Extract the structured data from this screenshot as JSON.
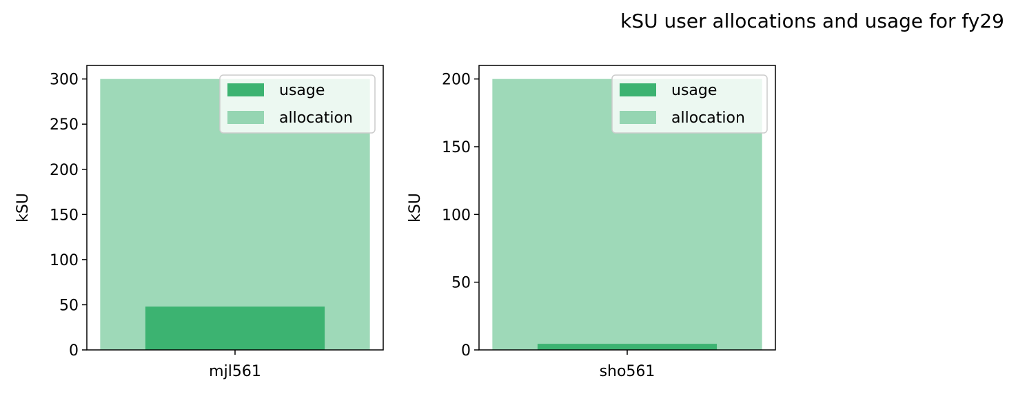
{
  "figure_title": "kSU user allocations and usage for fy29",
  "colors": {
    "usage": "#3cb371",
    "allocation": "#9ed9b8",
    "legend_usage": "#3cb371",
    "legend_allocation": "#95d5b2"
  },
  "chart_data": [
    {
      "type": "bar",
      "categories": [
        "mjl561"
      ],
      "ylabel": "kSU",
      "ylim": [
        0,
        315
      ],
      "yticks": [
        0,
        50,
        100,
        150,
        200,
        250,
        300
      ],
      "series": [
        {
          "name": "usage",
          "values": [
            48
          ]
        },
        {
          "name": "allocation",
          "values": [
            300
          ]
        }
      ],
      "legend_position": "top-right",
      "grid": false
    },
    {
      "type": "bar",
      "categories": [
        "sho561"
      ],
      "ylabel": "kSU",
      "ylim": [
        0,
        210
      ],
      "yticks": [
        0,
        50,
        100,
        150,
        200
      ],
      "series": [
        {
          "name": "usage",
          "values": [
            4.5
          ]
        },
        {
          "name": "allocation",
          "values": [
            200
          ]
        }
      ],
      "legend_position": "top-right",
      "grid": false
    }
  ]
}
